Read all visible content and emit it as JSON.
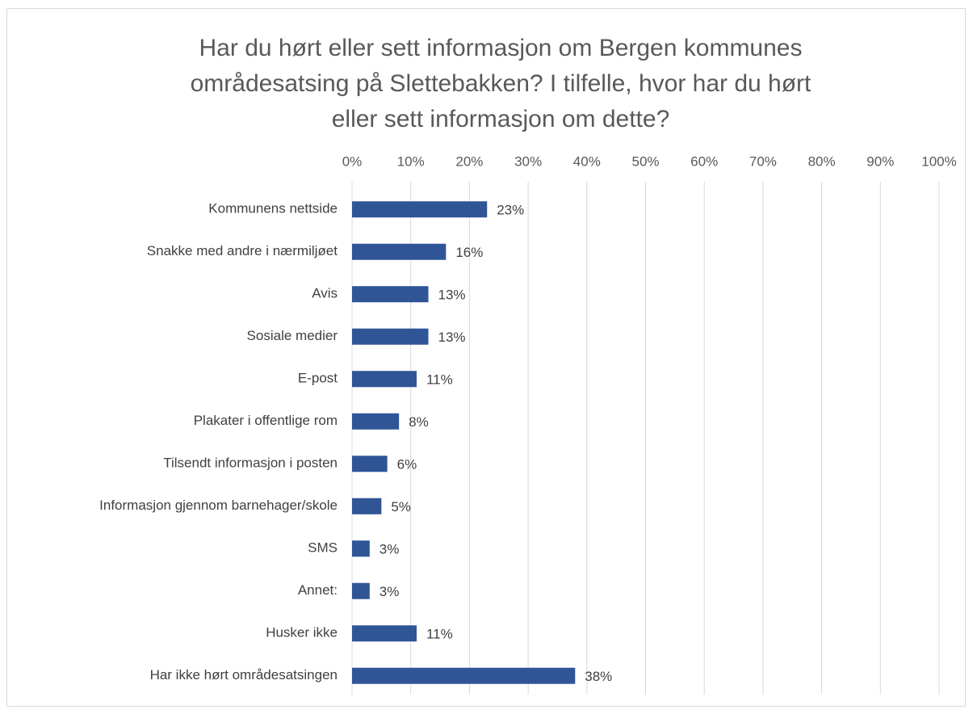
{
  "chart_data": {
    "type": "bar",
    "orientation": "horizontal",
    "title": "Har du hørt eller sett informasjon om Bergen kommunes områdesatsing på Slettebakken? I tilfelle, hvor har du hørt eller sett informasjon om dette?",
    "categories": [
      "Kommunens nettside",
      "Snakke med andre i nærmiljøet",
      "Avis",
      "Sosiale medier",
      "E-post",
      "Plakater i offentlige rom",
      "Tilsendt informasjon i posten",
      "Informasjon gjennom barnehager/skole",
      "SMS",
      "Annet:",
      "Husker ikke",
      "Har ikke hørt områdesatsingen"
    ],
    "values": [
      23,
      16,
      13,
      13,
      11,
      8,
      6,
      5,
      3,
      3,
      11,
      38
    ],
    "value_labels": [
      "23%",
      "16%",
      "13%",
      "13%",
      "11%",
      "8%",
      "6%",
      "5%",
      "3%",
      "3%",
      "11%",
      "38%"
    ],
    "color": "#2f5597",
    "xlim": [
      0,
      100
    ],
    "xticks": [
      {
        "value": 0,
        "label": "0%"
      },
      {
        "value": 10,
        "label": "10%"
      },
      {
        "value": 20,
        "label": "20%"
      },
      {
        "value": 30,
        "label": "30%"
      },
      {
        "value": 40,
        "label": "40%"
      },
      {
        "value": 50,
        "label": "50%"
      },
      {
        "value": 60,
        "label": "60%"
      },
      {
        "value": 70,
        "label": "70%"
      },
      {
        "value": 80,
        "label": "80%"
      },
      {
        "value": 90,
        "label": "90%"
      },
      {
        "value": 100,
        "label": "100%"
      }
    ],
    "grid": true
  }
}
